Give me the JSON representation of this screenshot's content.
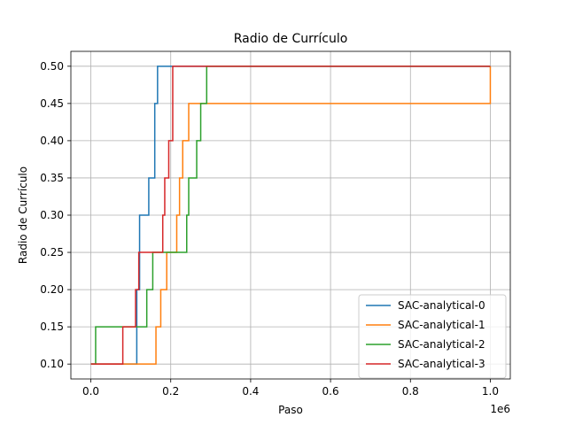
{
  "chart_data": {
    "type": "line",
    "title": "Radio de Currículo",
    "xlabel": "Paso",
    "ylabel": "Radio de Currículo",
    "x_multiplier_label": "1e6",
    "xlim": [
      -50000,
      1050000
    ],
    "ylim": [
      0.08,
      0.52
    ],
    "x_ticks": [
      0,
      200000,
      400000,
      600000,
      800000,
      1000000
    ],
    "x_tick_labels": [
      "0.0",
      "0.2",
      "0.4",
      "0.6",
      "0.8",
      "1.0"
    ],
    "y_ticks": [
      0.1,
      0.15,
      0.2,
      0.25,
      0.3,
      0.35,
      0.4,
      0.45,
      0.5
    ],
    "y_tick_labels": [
      "0.10",
      "0.15",
      "0.20",
      "0.25",
      "0.30",
      "0.35",
      "0.40",
      "0.45",
      "0.50"
    ],
    "grid": true,
    "legend_position": "lower-right",
    "step": "post",
    "series": [
      {
        "name": "SAC-analytical-0",
        "color": "#1f77b4",
        "x": [
          0,
          115000,
          122000,
          145000,
          160000,
          163000,
          167000,
          1000000
        ],
        "y": [
          0.1,
          0.2,
          0.3,
          0.35,
          0.45,
          0.45,
          0.5,
          0.5
        ]
      },
      {
        "name": "SAC-analytical-1",
        "color": "#ff7f0e",
        "x": [
          0,
          163000,
          175000,
          190000,
          215000,
          222000,
          230000,
          245000,
          1000000
        ],
        "y": [
          0.1,
          0.15,
          0.2,
          0.25,
          0.3,
          0.35,
          0.4,
          0.45,
          0.5
        ]
      },
      {
        "name": "SAC-analytical-2",
        "color": "#2ca02c",
        "x": [
          0,
          12000,
          140000,
          155000,
          240000,
          245000,
          265000,
          275000,
          290000,
          1000000
        ],
        "y": [
          0.1,
          0.15,
          0.2,
          0.25,
          0.3,
          0.35,
          0.4,
          0.45,
          0.5,
          0.5
        ]
      },
      {
        "name": "SAC-analytical-3",
        "color": "#d62728",
        "x": [
          0,
          80000,
          112000,
          120000,
          180000,
          185000,
          195000,
          205000,
          1000000
        ],
        "y": [
          0.1,
          0.15,
          0.2,
          0.25,
          0.3,
          0.35,
          0.4,
          0.5,
          0.5
        ]
      }
    ]
  }
}
